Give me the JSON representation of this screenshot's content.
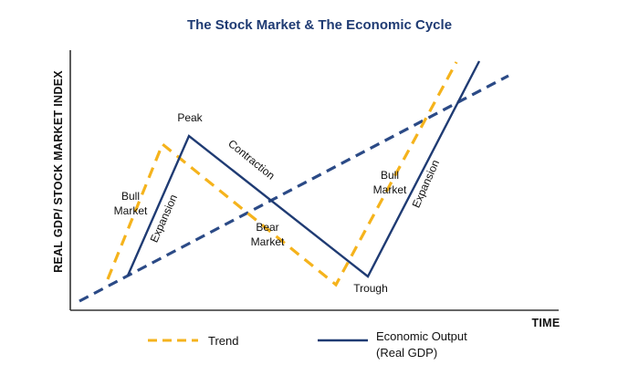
{
  "title": "The Stock Market & The Economic Cycle",
  "axes": {
    "ylabel": "REAL GDP/ STOCK MARKET INDEX",
    "xlabel": "TIME"
  },
  "annotations": {
    "peak": "Peak",
    "contraction": "Contraction",
    "bull_market_1_line1": "Bull",
    "bull_market_1_line2": "Market",
    "expansion_1": "Expansion",
    "bear_market_line1": "Bear",
    "bear_market_line2": "Market",
    "trough": "Trough",
    "bull_market_2_line1": "Bull",
    "bull_market_2_line2": "Market",
    "expansion_2": "Expansion"
  },
  "legend": {
    "trend_label": "Trend",
    "output_label_line1": "Economic Output",
    "output_label_line2": "(Real GDP)"
  },
  "colors": {
    "title": "#1f3b73",
    "trend_line": "#f5b31c",
    "output_line": "#1f3b73",
    "long_term_trend": "#2b4a86",
    "axis": "#333333"
  }
}
